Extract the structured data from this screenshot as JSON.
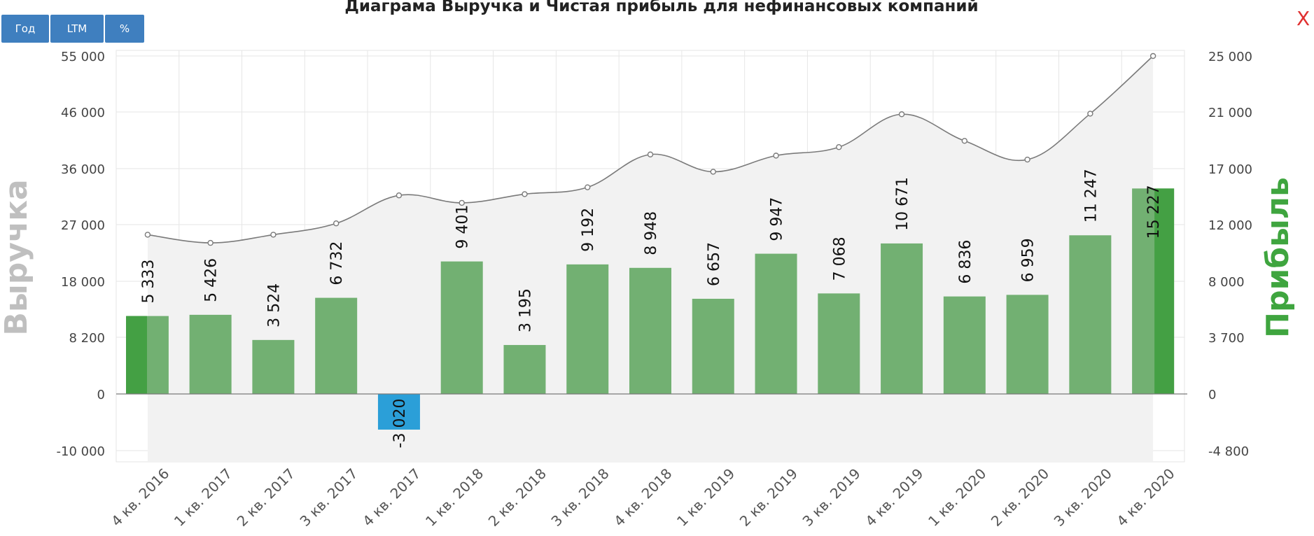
{
  "header": {
    "title": "Диаграма Выручка и Чистая прибыль для нефинансовых компаний",
    "buttons": [
      "Год",
      "LTM",
      "%"
    ],
    "close_label": "X"
  },
  "chart_data": {
    "type": "bar",
    "title": "Диаграма Выручка и Чистая прибыль для нефинансовых компаний",
    "categories": [
      "4 кв. 2016",
      "1 кв. 2017",
      "2 кв. 2017",
      "3 кв. 2017",
      "4 кв. 2017",
      "1 кв. 2018",
      "2 кв. 2018",
      "3 кв. 2018",
      "4 кв. 2018",
      "1 кв. 2019",
      "2 кв. 2019",
      "3 кв. 2019",
      "4 кв. 2019",
      "1 кв. 2020",
      "2 кв. 2020",
      "3 кв. 2020",
      "4 кв. 2020"
    ],
    "series": [
      {
        "name": "Выручка",
        "type": "area",
        "axis": "left",
        "values": [
          25400,
          24100,
          25400,
          27200,
          31700,
          30500,
          31900,
          33000,
          38500,
          35500,
          38300,
          39800,
          45600,
          40900,
          37600,
          45700,
          55000
        ]
      },
      {
        "name": "Прибыль",
        "type": "bar",
        "axis": "right",
        "values": [
          5333,
          5426,
          3524,
          6732,
          -3020,
          9401,
          3195,
          9192,
          8948,
          6657,
          9947,
          7068,
          10671,
          6836,
          6959,
          11247,
          15227
        ],
        "labels": [
          "5 333",
          "5 426",
          "3 524",
          "6 732",
          "-3 020",
          "9 401",
          "3 195",
          "9 192",
          "8 948",
          "6 657",
          "9 947",
          "7 068",
          "10 671",
          "6 836",
          "6 959",
          "11 247",
          "15 227"
        ]
      }
    ],
    "left_axis": {
      "label": "Выручка",
      "ticks": [
        55000,
        46000,
        36000,
        27000,
        18000,
        8200,
        0,
        -10000
      ],
      "tick_labels": [
        "55 000",
        "46 000",
        "36 000",
        "27 000",
        "18 000",
        "8 200",
        "0",
        "-10 000"
      ]
    },
    "right_axis": {
      "label": "Прибыль",
      "ticks": [
        25000,
        21000,
        17000,
        12000,
        8000,
        3700,
        0,
        -4800
      ],
      "tick_labels": [
        "25 000",
        "21 000",
        "17 000",
        "12 000",
        "8 000",
        "3 700",
        "0",
        "-4 800"
      ]
    },
    "grid": true,
    "colors": {
      "bar": "#72b072",
      "bar_highlight": "#44a044",
      "bar_negative": "#2b9fd8",
      "line": "#7a7a7a",
      "area": "#f2f2f2",
      "grid": "#e6e6e6",
      "left_title": "#bfbfbf",
      "right_title": "#3fa53f"
    }
  }
}
